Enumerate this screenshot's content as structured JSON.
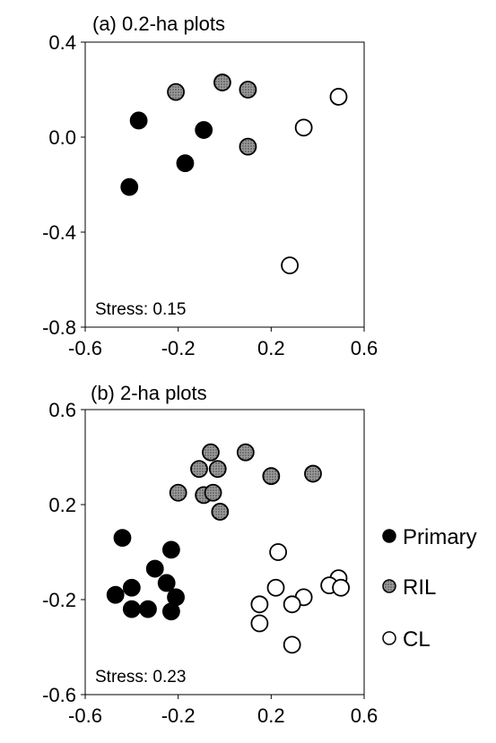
{
  "chart_data": [
    {
      "type": "scatter",
      "title": "(a) 0.2-ha plots",
      "annotation": "Stress: 0.15",
      "xlim": [
        -0.6,
        0.6
      ],
      "ylim": [
        -0.8,
        0.4
      ],
      "xticks": [
        "-0.6",
        "-0.2",
        "0.2",
        "0.6"
      ],
      "yticks": [
        "0.4",
        "0.0",
        "-0.4",
        "-0.8"
      ],
      "xtick_values": [
        -0.6,
        -0.2,
        0.2,
        0.6
      ],
      "ytick_values": [
        0.4,
        0.0,
        -0.4,
        -0.8
      ],
      "series": [
        {
          "name": "Primary",
          "style": "filled",
          "points": [
            [
              -0.37,
              0.07
            ],
            [
              -0.09,
              0.03
            ],
            [
              -0.17,
              -0.11
            ],
            [
              -0.41,
              -0.21
            ]
          ]
        },
        {
          "name": "RIL",
          "style": "hatched",
          "points": [
            [
              -0.21,
              0.19
            ],
            [
              -0.01,
              0.23
            ],
            [
              0.1,
              0.2
            ],
            [
              0.1,
              -0.04
            ]
          ]
        },
        {
          "name": "CL",
          "style": "open",
          "points": [
            [
              0.49,
              0.17
            ],
            [
              0.34,
              0.04
            ],
            [
              0.28,
              -0.54
            ]
          ]
        }
      ]
    },
    {
      "type": "scatter",
      "title": "(b) 2-ha plots",
      "annotation": "Stress: 0.23",
      "xlim": [
        -0.6,
        0.6
      ],
      "ylim": [
        -0.6,
        0.6
      ],
      "xticks": [
        "-0.6",
        "-0.2",
        "0.2",
        "0.6"
      ],
      "yticks": [
        "0.6",
        "0.2",
        "-0.2",
        "-0.6"
      ],
      "xtick_values": [
        -0.6,
        -0.2,
        0.2,
        0.6
      ],
      "ytick_values": [
        0.6,
        0.2,
        -0.2,
        -0.6
      ],
      "series": [
        {
          "name": "Primary",
          "style": "filled",
          "points": [
            [
              -0.44,
              0.06
            ],
            [
              -0.23,
              0.01
            ],
            [
              -0.3,
              -0.07
            ],
            [
              -0.25,
              -0.13
            ],
            [
              -0.4,
              -0.15
            ],
            [
              -0.47,
              -0.18
            ],
            [
              -0.21,
              -0.19
            ],
            [
              -0.4,
              -0.24
            ],
            [
              -0.33,
              -0.24
            ],
            [
              -0.23,
              -0.25
            ]
          ]
        },
        {
          "name": "RIL",
          "style": "hatched",
          "points": [
            [
              -0.06,
              0.42
            ],
            [
              0.09,
              0.42
            ],
            [
              -0.11,
              0.35
            ],
            [
              -0.03,
              0.35
            ],
            [
              0.2,
              0.32
            ],
            [
              0.38,
              0.33
            ],
            [
              -0.2,
              0.25
            ],
            [
              -0.09,
              0.24
            ],
            [
              -0.05,
              0.25
            ],
            [
              -0.02,
              0.17
            ]
          ]
        },
        {
          "name": "CL",
          "style": "open",
          "points": [
            [
              0.23,
              0.0
            ],
            [
              0.49,
              -0.11
            ],
            [
              0.45,
              -0.14
            ],
            [
              0.5,
              -0.15
            ],
            [
              0.22,
              -0.15
            ],
            [
              0.34,
              -0.19
            ],
            [
              0.29,
              -0.22
            ],
            [
              0.15,
              -0.22
            ],
            [
              0.15,
              -0.3
            ],
            [
              0.29,
              -0.39
            ]
          ]
        }
      ]
    }
  ],
  "legend": {
    "items": [
      {
        "label": "Primary",
        "style": "filled"
      },
      {
        "label": "RIL",
        "style": "hatched"
      },
      {
        "label": "CL",
        "style": "open"
      }
    ]
  }
}
